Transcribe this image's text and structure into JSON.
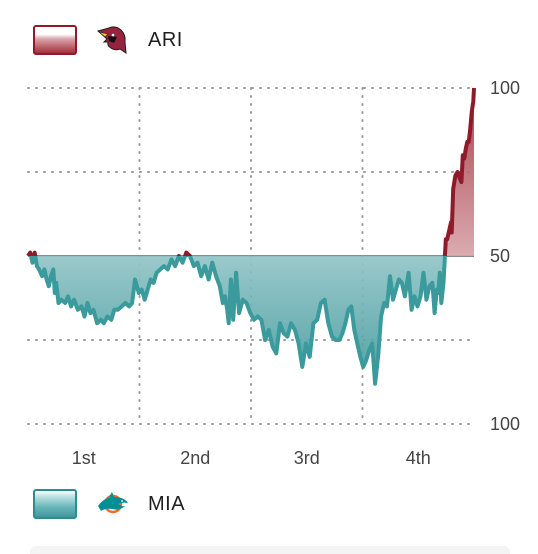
{
  "legend": {
    "home": {
      "abbr": "ARI",
      "logo": "cardinal-head-logo",
      "color": "#8e1a2a"
    },
    "away": {
      "abbr": "MIA",
      "logo": "dolphin-logo",
      "color": "#2e8c90"
    }
  },
  "chart_data": {
    "type": "line",
    "title": "",
    "xlabel": "",
    "ylabel": "",
    "x_domain": [
      0,
      60
    ],
    "ylim": [
      0,
      100
    ],
    "center_value": 50,
    "categories": [
      "1st",
      "2nd",
      "3rd",
      "4th"
    ],
    "y_tick_labels": [
      "100",
      "50",
      "100"
    ],
    "grid": true,
    "series": [
      {
        "name": "ARI",
        "color": "#8e1a2a",
        "x": [
          0,
          0.3,
          0.6,
          0.9,
          1.2,
          1.5,
          1.9,
          2.2,
          2.5,
          2.8,
          3.1,
          3.4,
          3.6,
          3.8,
          4.1,
          4.5,
          5.0,
          5.4,
          5.8,
          6.2,
          6.7,
          7.2,
          7.6,
          8.0,
          8.4,
          8.8,
          9.3,
          9.8,
          10.2,
          10.7,
          11.2,
          11.6,
          12.1,
          12.6,
          13.1,
          13.6,
          14.0,
          14.4,
          14.9,
          15.3,
          15.7,
          16.1,
          16.5,
          16.9,
          17.3,
          17.8,
          18.3,
          18.8,
          19.3,
          19.8,
          20.3,
          20.8,
          21.3,
          21.8,
          22.3,
          22.8,
          23.3,
          23.8,
          24.3,
          24.8,
          25.3,
          25.8,
          26.2,
          26.5,
          26.8,
          27.0,
          27.3,
          27.6,
          28.0,
          28.4,
          28.9,
          29.4,
          29.9,
          30.4,
          30.9,
          31.4,
          31.9,
          32.4,
          32.9,
          33.4,
          33.9,
          34.4,
          34.9,
          35.4,
          35.9,
          36.4,
          36.9,
          37.4,
          37.9,
          38.4,
          38.9,
          39.4,
          39.9,
          40.4,
          40.9,
          41.4,
          41.9,
          42.3,
          42.7,
          43.1,
          43.5,
          43.9,
          44.3,
          44.7,
          45.1,
          45.5,
          45.9,
          46.3,
          46.7,
          47.1,
          47.5,
          47.9,
          48.3,
          48.7,
          49.1,
          49.5,
          49.9,
          50.3,
          50.7,
          51.2,
          51.6,
          52.0,
          52.4,
          52.8,
          53.2,
          53.6,
          54.0,
          54.4,
          54.7,
          55.0,
          55.2,
          55.4,
          55.6,
          55.9,
          56.2,
          56.4,
          56.7,
          56.9,
          57.0,
          57.2,
          57.5,
          57.8,
          58.1,
          58.3,
          58.5,
          58.7,
          58.9,
          59.1,
          59.3,
          59.5,
          59.7,
          59.9,
          60.0
        ],
        "y": [
          50,
          51,
          48,
          51,
          47,
          46,
          44,
          46,
          43,
          41,
          44,
          46,
          39,
          42,
          36,
          37,
          36,
          38,
          35,
          37,
          34,
          35,
          32,
          36,
          33,
          34,
          30,
          31,
          30,
          32,
          31,
          34,
          34,
          35,
          36,
          35,
          36,
          43,
          39,
          40,
          37,
          40,
          43,
          42,
          45,
          46,
          47,
          46,
          49,
          47,
          50,
          48,
          51,
          50,
          47,
          48,
          44,
          47,
          43,
          48,
          44,
          41,
          36,
          38,
          34,
          30,
          43,
          31,
          45,
          33,
          37,
          36,
          33,
          31,
          32,
          31,
          25,
          28,
          23,
          21,
          30,
          27,
          26,
          30,
          28,
          24,
          17,
          24,
          20,
          30,
          31,
          36,
          37,
          30,
          26,
          25,
          25,
          27,
          30,
          34,
          35,
          28,
          24,
          20,
          17,
          19,
          22,
          24,
          12,
          20,
          32,
          36,
          35,
          44,
          37,
          40,
          43,
          42,
          38,
          45,
          34,
          38,
          35,
          38,
          45,
          37,
          41,
          42,
          33,
          40,
          39,
          45,
          36,
          42,
          55,
          55,
          58,
          60,
          57,
          70,
          74,
          75,
          73,
          72,
          80,
          79,
          82,
          84,
          84,
          88,
          93,
          96,
          100
        ]
      },
      {
        "name": "MIA",
        "color": "#2e8c90"
      }
    ]
  }
}
